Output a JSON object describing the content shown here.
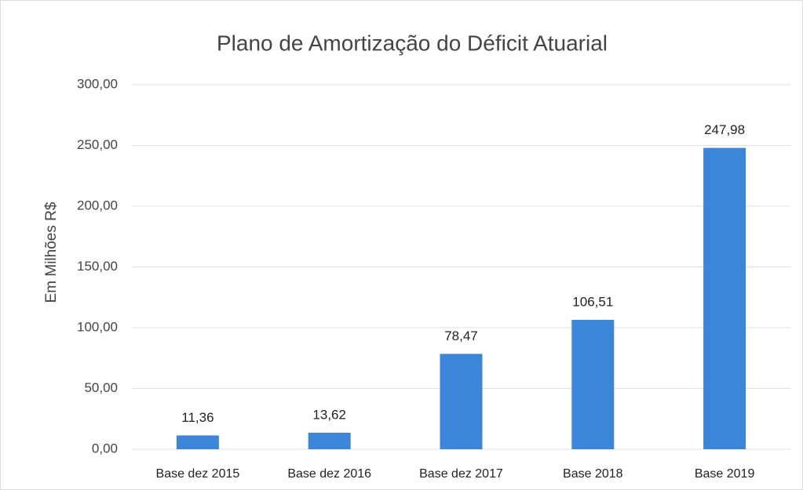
{
  "chart_data": {
    "type": "bar",
    "title": "Plano de Amortização do Déficit Atuarial",
    "y_label": "Em Milhões R$",
    "categories": [
      "Base dez 2015",
      "Base dez 2016",
      "Base dez 2017",
      "Base 2018",
      "Base 2019"
    ],
    "values": [
      11.36,
      13.62,
      78.47,
      106.51,
      247.98
    ],
    "value_labels": [
      "11,36",
      "13,62",
      "78,47",
      "106,51",
      "247,98"
    ],
    "color": "#3b86d9",
    "ylim": [
      0,
      300
    ],
    "yticks": [
      {
        "value": 0,
        "label": "0,00"
      },
      {
        "value": 50,
        "label": "50,00"
      },
      {
        "value": 100,
        "label": "100,00"
      },
      {
        "value": 150,
        "label": "150,00"
      },
      {
        "value": 200,
        "label": "200,00"
      },
      {
        "value": 250,
        "label": "250,00"
      },
      {
        "value": 300,
        "label": "300,00"
      }
    ],
    "grid": true
  }
}
